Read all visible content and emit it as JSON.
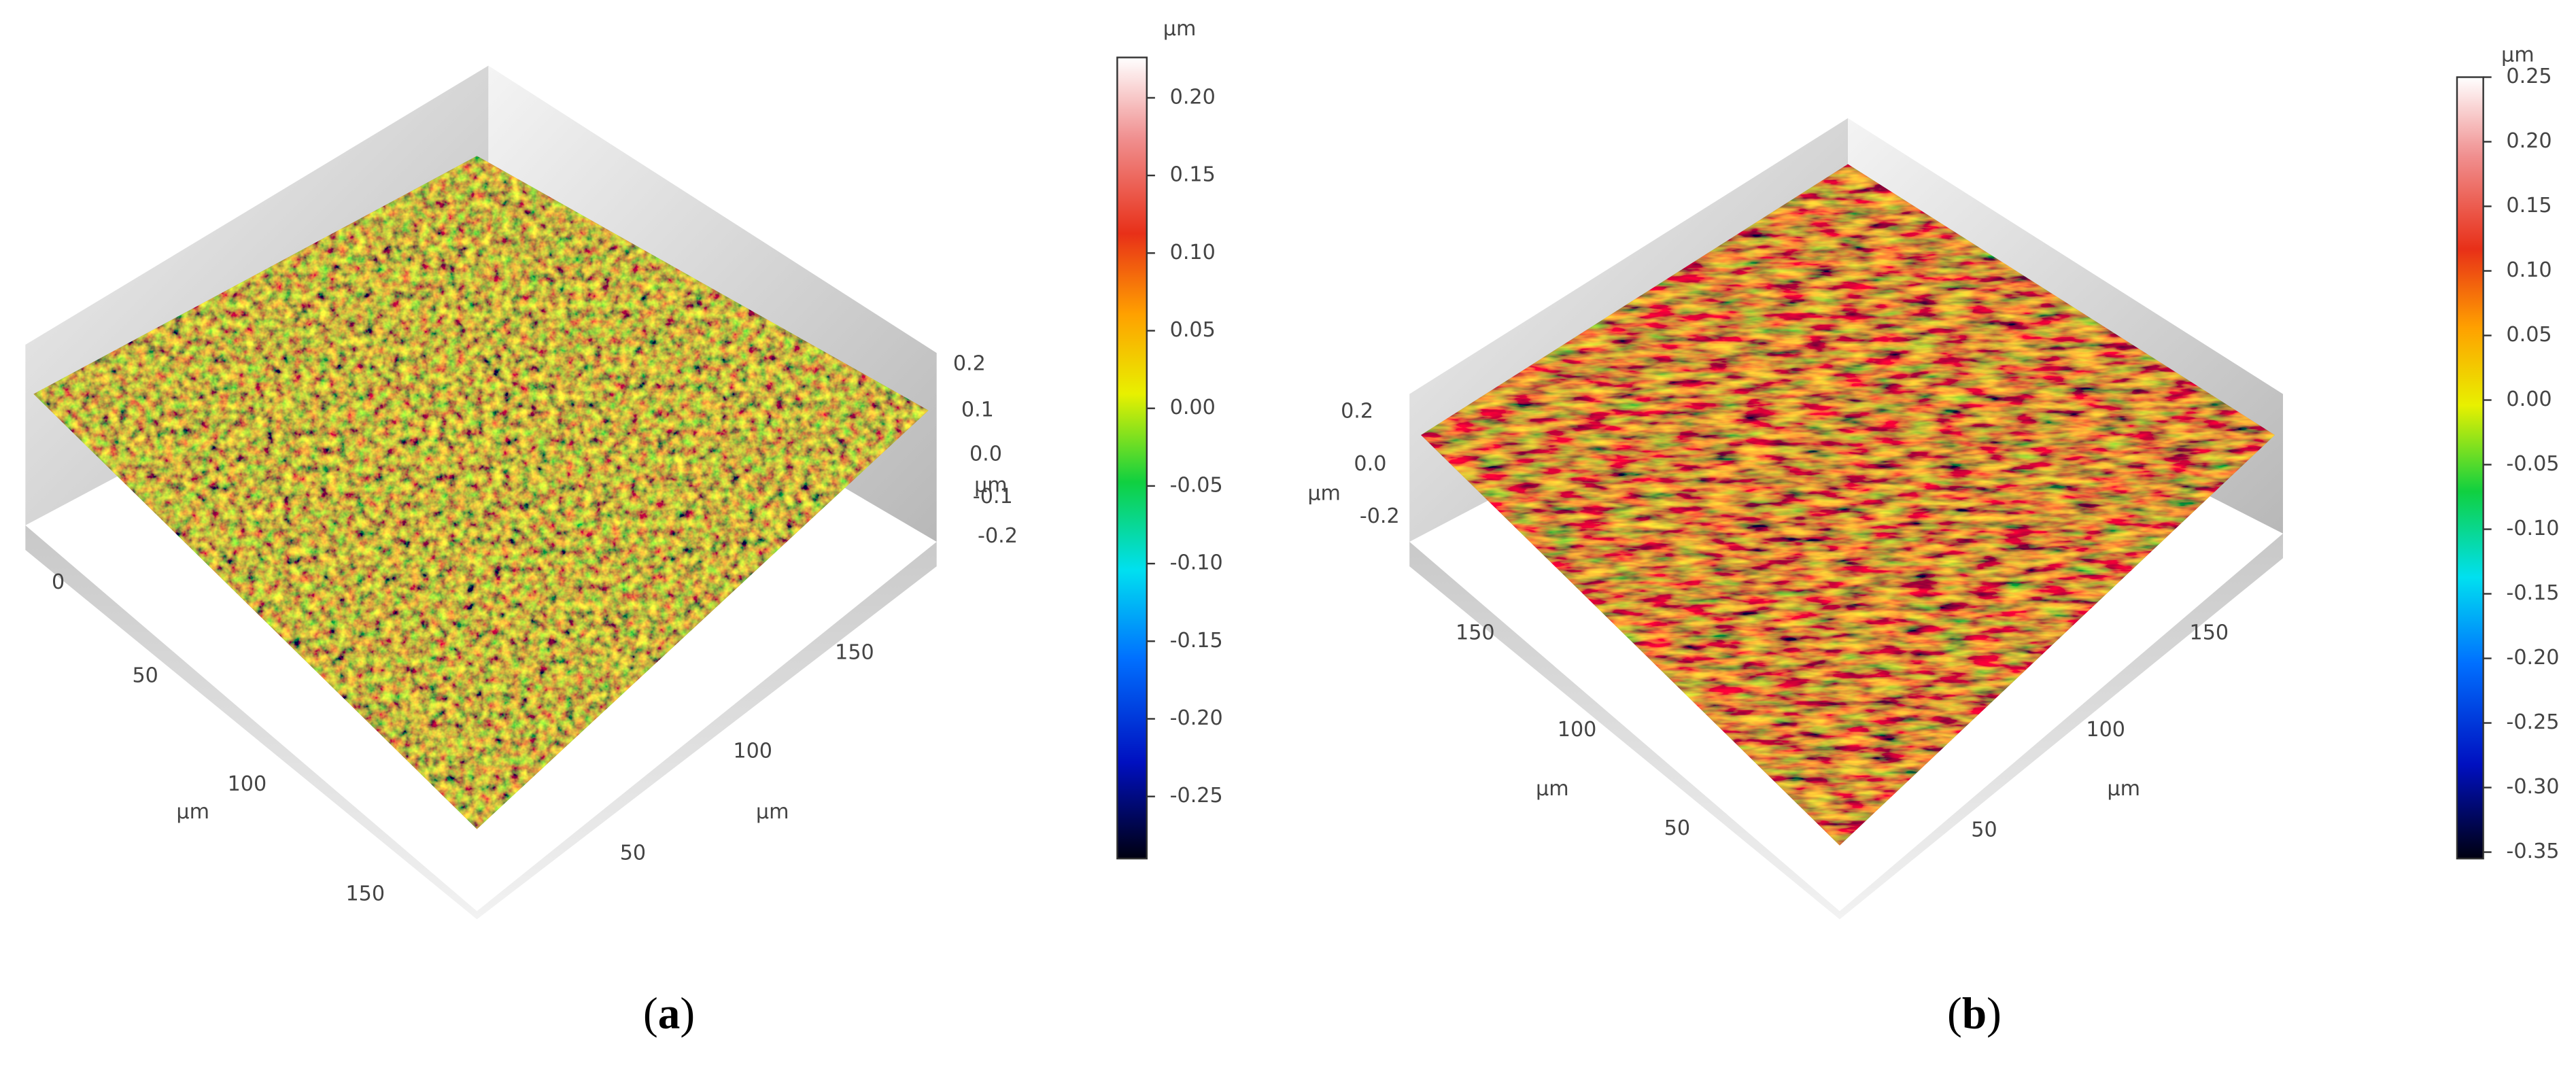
{
  "panels": [
    {
      "label_open": "(",
      "label": "a",
      "label_close": ")",
      "colorbar": {
        "unit": "µm",
        "lim": [
          -0.29,
          0.226
        ],
        "ticks": [
          {
            "value": 0.2,
            "label": "0.20"
          },
          0.15,
          {
            "value": 0.1,
            "label": "0.10"
          },
          0.05,
          {
            "value": 0,
            "label": "0.00"
          },
          -0.05,
          {
            "value": -0.1,
            "label": "-0.10"
          },
          -0.15,
          {
            "value": -0.2,
            "label": "-0.20"
          },
          -0.25
        ]
      },
      "z_axis": {
        "unit": "µm",
        "ticks": [
          "0.2",
          "0.1",
          "0.0",
          "-0.1",
          "-0.2"
        ]
      },
      "x_axis": {
        "unit": "µm",
        "ticks": [
          "0",
          "50",
          "100",
          "150"
        ]
      },
      "y_axis": {
        "unit": "µm",
        "ticks": [
          "150",
          "100",
          "50"
        ]
      }
    },
    {
      "label_open": "(",
      "label": "b",
      "label_close": ")",
      "colorbar": {
        "unit": "µm",
        "lim": [
          -0.355,
          0.25
        ],
        "ticks": [
          0.25,
          {
            "value": 0.2,
            "label": "0.20"
          },
          0.15,
          {
            "value": 0.1,
            "label": "0.10"
          },
          0.05,
          {
            "value": 0,
            "label": "0.00"
          },
          -0.05,
          {
            "value": -0.1,
            "label": "-0.10"
          },
          -0.15,
          {
            "value": -0.2,
            "label": "-0.20"
          },
          -0.25,
          {
            "value": -0.3,
            "label": "-0.30"
          },
          -0.35
        ]
      },
      "z_axis": {
        "unit": "µm",
        "ticks": [
          "0.2",
          "0.0",
          "-0.2"
        ]
      },
      "x_axis": {
        "unit": "µm",
        "ticks": [
          "150",
          "100",
          "50"
        ]
      },
      "y_axis": {
        "unit": "µm",
        "ticks": [
          "150",
          "100",
          "50"
        ]
      }
    }
  ]
}
